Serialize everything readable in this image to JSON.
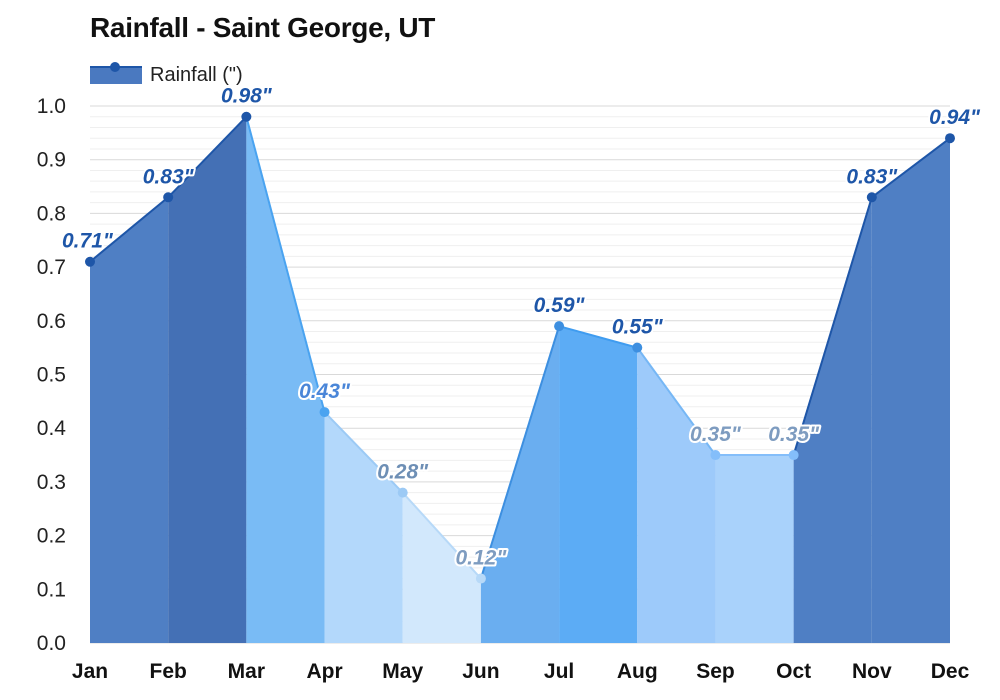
{
  "title": "Rainfall - Saint George, UT",
  "legend": {
    "label": "Rainfall (\")"
  },
  "chart_data": {
    "type": "area",
    "title": "Rainfall - Saint George, UT",
    "categories": [
      "Jan",
      "Feb",
      "Mar",
      "Apr",
      "May",
      "Jun",
      "Jul",
      "Aug",
      "Sep",
      "Oct",
      "Nov",
      "Dec"
    ],
    "series": [
      {
        "name": "Rainfall (\")",
        "values": [
          0.71,
          0.83,
          0.98,
          0.43,
          0.28,
          0.12,
          0.59,
          0.55,
          0.35,
          0.35,
          0.83,
          0.94
        ],
        "labels": [
          "0.71\"",
          "0.83\"",
          "0.98\"",
          "0.43\"",
          "0.28\"",
          "0.12\"",
          "0.59\"",
          "0.55\"",
          "0.35\"",
          "0.35\"",
          "0.83\"",
          "0.94\""
        ]
      }
    ],
    "ylim": [
      0,
      1.0
    ],
    "yticks": [
      "0.0",
      "0.1",
      "0.2",
      "0.3",
      "0.4",
      "0.5",
      "0.6",
      "0.7",
      "0.8",
      "0.9",
      "1.0"
    ],
    "xlabel": "",
    "ylabel": "",
    "grid": true,
    "legend_position": "top-left",
    "colors": {
      "segment_fills": [
        "#4f7fc4",
        "#4470b5",
        "#79bbf5",
        "#b3d8fb",
        "#d2e8fc",
        "#6aaef0",
        "#5cacf5",
        "#9dcafa",
        "#a9d2fb",
        "#4f7fc4",
        "#4f7fc4"
      ],
      "segment_lines": [
        "#1e56a8",
        "#1e56a8",
        "#4aa3f0",
        "#9ccaf5",
        "#b7d9f8",
        "#3d8fe0",
        "#3f9cf0",
        "#76b7f5",
        "#84befa",
        "#1e56a8",
        "#1e56a8"
      ],
      "point_colors": [
        "#1e56a8",
        "#1e56a8",
        "#1e56a8",
        "#4aa3f0",
        "#9ccaf5",
        "#b7d9f8",
        "#3d8fe0",
        "#3d8fe0",
        "#84befa",
        "#84befa",
        "#1e56a8",
        "#1e56a8"
      ],
      "label_colors": [
        "#1e56a8",
        "#1e56a8",
        "#1e56a8",
        "#4a86d8",
        "#6e8fb5",
        "#7e9cc0",
        "#1e56a8",
        "#1e56a8",
        "#7e9cc0",
        "#7e9cc0",
        "#1e56a8",
        "#1e56a8"
      ]
    }
  }
}
